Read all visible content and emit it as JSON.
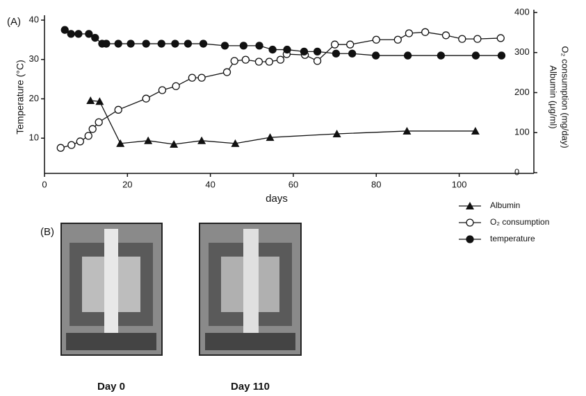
{
  "chart_data": {
    "type": "line",
    "panel_label": "(A)",
    "x_label": "days",
    "y_label": "Temperature (°C)",
    "y2_label": "O₂ consumption (mg/day)",
    "y2_label_2": "Albumin (μg/ml)",
    "xlim": [
      0,
      118
    ],
    "xticks": [
      0,
      20,
      40,
      60,
      80,
      100
    ],
    "ylim": [
      0,
      40
    ],
    "yticks": [
      10,
      20,
      30,
      40
    ],
    "y2lim": [
      0,
      400
    ],
    "y2ticks": [
      0,
      100,
      200,
      300,
      400
    ],
    "series": [
      {
        "name": "Albumin",
        "color": "#111111",
        "marker": "triangle",
        "axis": "y2",
        "x": [
          11.1,
          13.3,
          18.3,
          25,
          31.2,
          37.9,
          46,
          54.4,
          70.5,
          87.4,
          103.9
        ],
        "values": [
          180,
          178,
          73,
          80,
          71,
          80,
          73,
          88,
          97,
          104,
          104
        ]
      },
      {
        "name": "O₂ consumption",
        "color": "#111111",
        "marker": "open-circle",
        "axis": "y2",
        "x": [
          3.9,
          6.5,
          8.6,
          10.6,
          11.6,
          13.1,
          17.8,
          24.5,
          28.4,
          31.7,
          35.6,
          37.9,
          44,
          45.8,
          48.5,
          51.7,
          54.2,
          56.9,
          58.4,
          62.8,
          65.8,
          70,
          73.7,
          80,
          85.2,
          87.9,
          91.8,
          96.8,
          100.7,
          104.4,
          110
        ],
        "values": [
          62,
          69,
          78,
          92,
          109,
          126,
          157,
          185,
          206,
          216,
          237,
          237,
          251,
          279,
          282,
          277,
          277,
          282,
          296,
          294,
          279,
          320,
          320,
          332,
          332,
          348,
          351,
          343,
          334,
          334,
          336
        ]
      },
      {
        "name": "temperature",
        "color": "#111111",
        "marker": "filled-circle",
        "axis": "y",
        "x": [
          4.9,
          6.4,
          8.2,
          10.7,
          12.2,
          13.9,
          14.9,
          17.8,
          20.8,
          24.5,
          28.2,
          31.5,
          34.6,
          38.3,
          43.5,
          48,
          51.8,
          55,
          58.5,
          62.6,
          65.8,
          70.3,
          74.2,
          79.9,
          87.6,
          95.6,
          104,
          110.2
        ],
        "values": [
          37.5,
          36.5,
          36.5,
          36.5,
          35.5,
          34,
          34,
          34,
          34,
          34,
          34,
          34,
          34,
          34,
          33.5,
          33.5,
          33.5,
          32.5,
          32.5,
          32,
          32,
          31.5,
          31.5,
          31,
          31,
          31,
          31,
          31
        ]
      }
    ]
  },
  "panel_b": {
    "label": "(B)",
    "images": [
      {
        "caption": "Day 0"
      },
      {
        "caption": "Day 110"
      }
    ]
  }
}
